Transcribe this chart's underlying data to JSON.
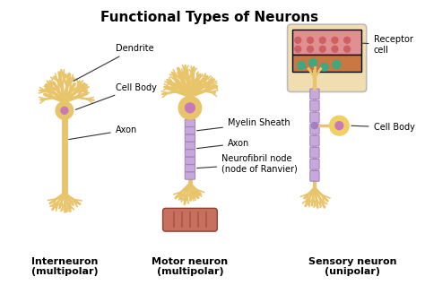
{
  "title": "Functional Types of Neurons",
  "title_fontsize": 11,
  "title_fontweight": "bold",
  "bg_color": "#ffffff",
  "neuron1_label": "Interneuron\n(multipolar)",
  "neuron2_label": "Motor neuron\n(multipolar)",
  "neuron3_label": "Sensory neuron\n(unipolar)",
  "label_fontsize": 8,
  "annotation_fontsize": 7,
  "gold": "#e8c46a",
  "gold_dark": "#d4a843",
  "myelin_fill": "#c8a8dc",
  "myelin_edge": "#a080c0",
  "nucleus_color": "#c87ab8",
  "muscle_color": "#c87060",
  "muscle_stripe": "#a05040",
  "skin_top": "#e8a0a0",
  "skin_mid": "#d48060",
  "skin_bot": "#e8c890",
  "teal": "#50a890",
  "box_edge": "#aaaaaa",
  "soma_yellow": "#f0d060",
  "line_color": "#333333"
}
